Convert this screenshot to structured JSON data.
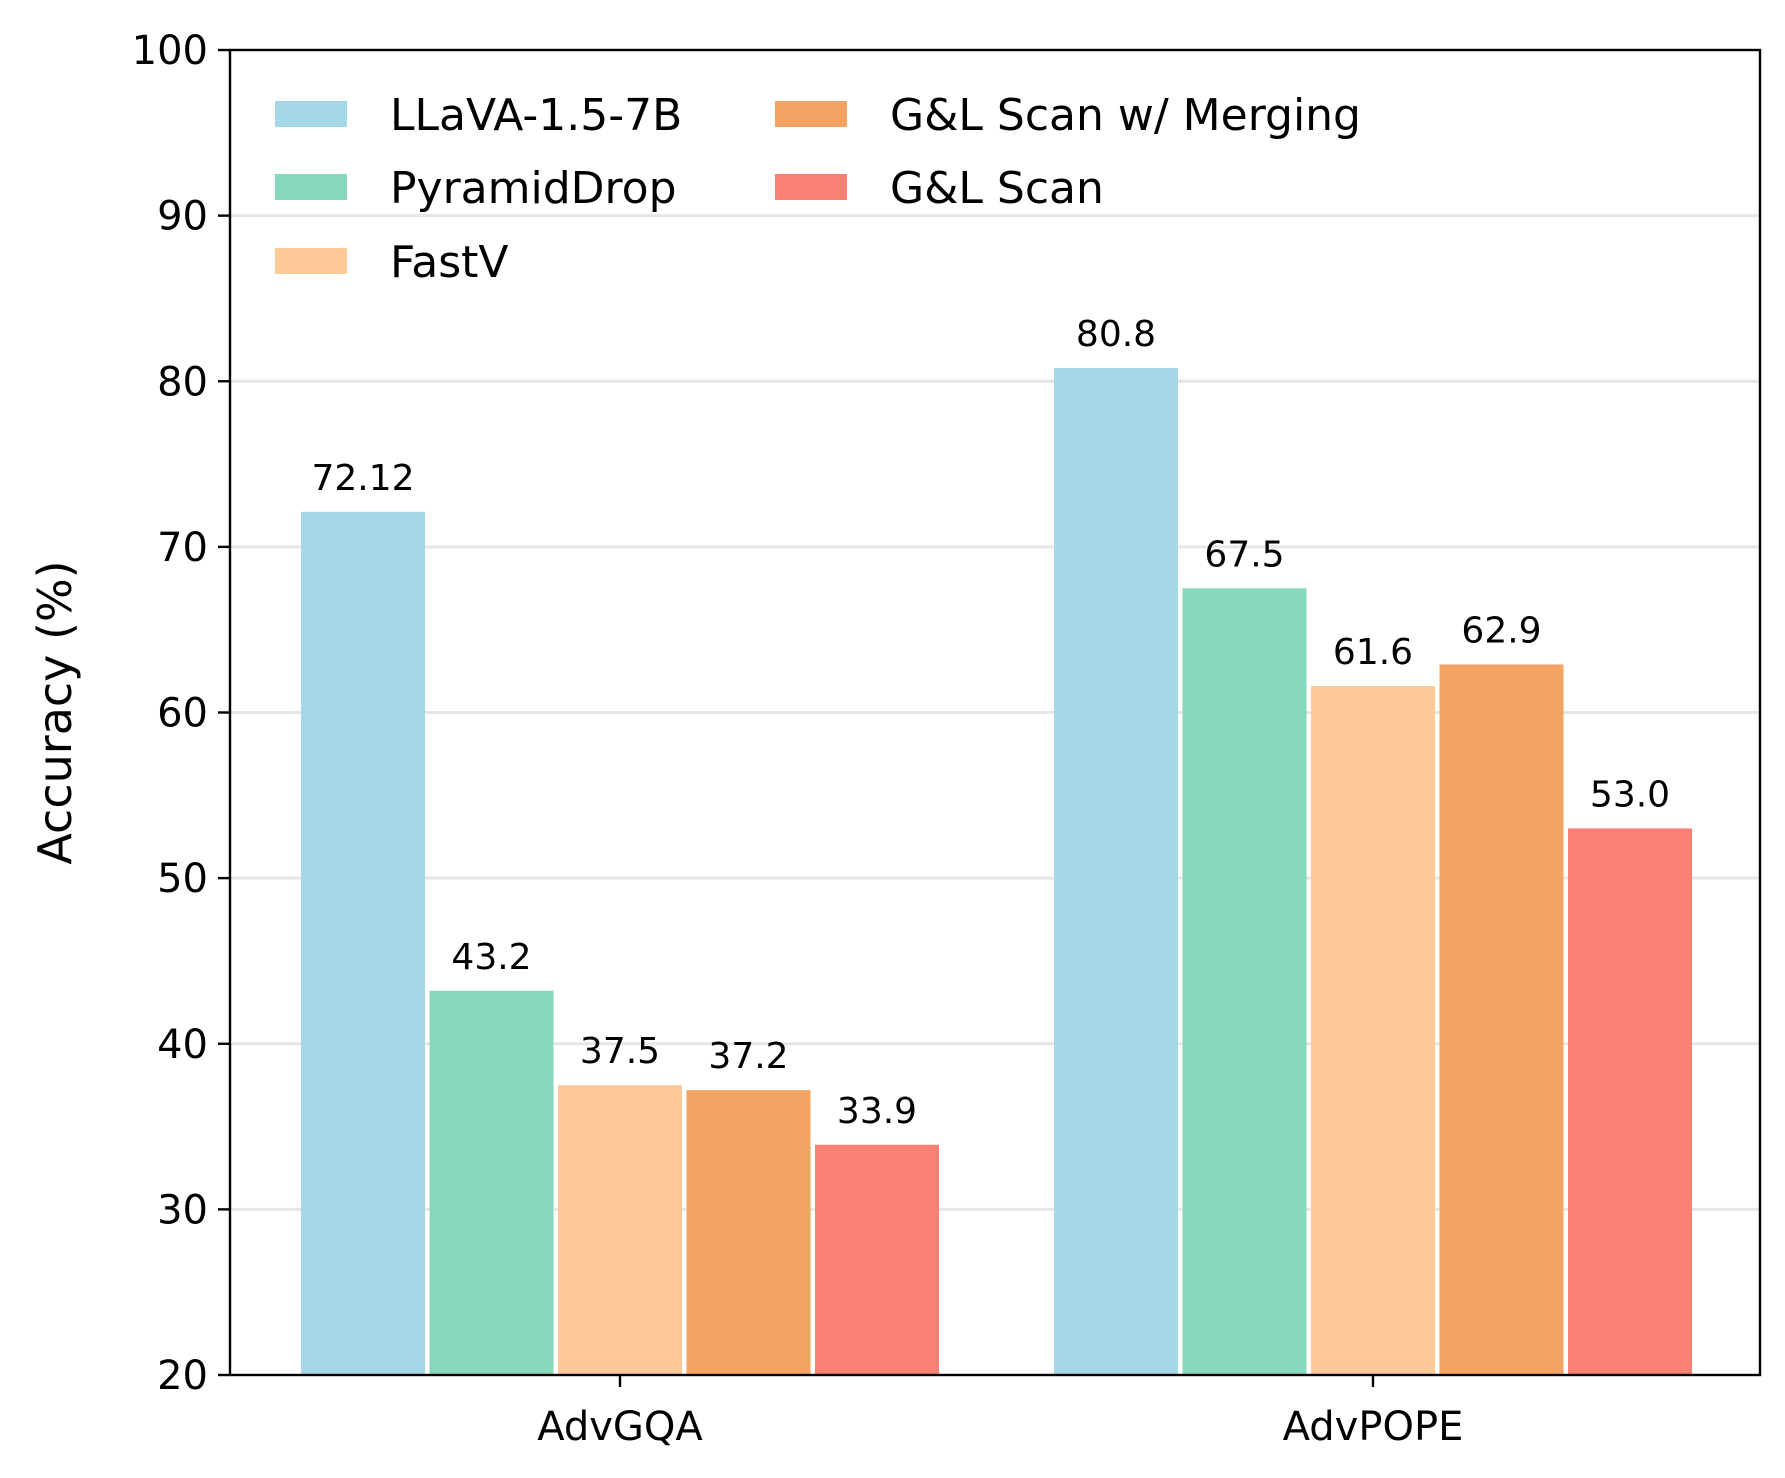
{
  "chart_data": {
    "type": "bar",
    "title": "",
    "xlabel": "",
    "ylabel": "Accuracy (%)",
    "ylim": [
      20,
      100
    ],
    "yticks": [
      20,
      30,
      40,
      50,
      60,
      70,
      80,
      90,
      100
    ],
    "grid": "horizontal",
    "legend_position": "top-left",
    "categories": [
      "AdvGQA",
      "AdvPOPE"
    ],
    "series": [
      {
        "name": "LLaVA-1.5-7B",
        "color": "#a5d8e6",
        "values": [
          72.12,
          80.8
        ],
        "labels": [
          "72.12",
          "80.8"
        ]
      },
      {
        "name": "PyramidDrop",
        "color": "#87d7bc",
        "values": [
          43.2,
          67.5
        ],
        "labels": [
          "43.2",
          "67.5"
        ]
      },
      {
        "name": "FastV",
        "color": "#fdc997",
        "values": [
          37.5,
          61.6
        ],
        "labels": [
          "37.5",
          "61.6"
        ]
      },
      {
        "name": "G&L Scan w/ Merging",
        "color": "#f4a462",
        "values": [
          37.2,
          62.9
        ],
        "labels": [
          "37.2",
          "62.9"
        ]
      },
      {
        "name": "G&L Scan",
        "color": "#f98072",
        "values": [
          33.9,
          53.0
        ],
        "labels": [
          "33.9",
          "53.0"
        ]
      }
    ]
  }
}
